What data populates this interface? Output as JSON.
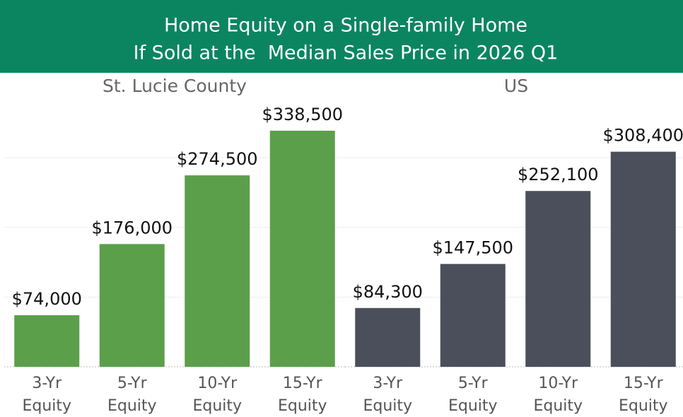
{
  "title": [
    "Home Equity on a Single-family Home",
    "If Sold at the  Median Sales Price in 2026 Q1"
  ],
  "chart_data": [
    {
      "type": "bar",
      "title": "St. Lucie County",
      "categories": [
        [
          "3-Yr",
          "Equity"
        ],
        [
          "5-Yr",
          "Equity"
        ],
        [
          "10-Yr",
          "Equity"
        ],
        [
          "15-Yr",
          "Equity"
        ]
      ],
      "values": [
        74000,
        176000,
        274500,
        338500
      ],
      "value_labels": [
        "$74,000",
        "$176,000",
        "$274,500",
        "$338,500"
      ],
      "color": "#5b9f4b",
      "ylim": [
        0,
        380000
      ],
      "yticks": [
        0,
        100000,
        200000,
        300000
      ],
      "grid": true
    },
    {
      "type": "bar",
      "title": "US",
      "categories": [
        [
          "3-Yr",
          "Equity"
        ],
        [
          "5-Yr",
          "Equity"
        ],
        [
          "10-Yr",
          "Equity"
        ],
        [
          "15-Yr",
          "Equity"
        ]
      ],
      "values": [
        84300,
        147500,
        252100,
        308400
      ],
      "value_labels": [
        "$84,300",
        "$147,500",
        "$252,100",
        "$308,400"
      ],
      "color": "#4a4f5b",
      "ylim": [
        0,
        380000
      ],
      "yticks": [
        0,
        100000,
        200000,
        300000
      ],
      "grid": true
    }
  ]
}
